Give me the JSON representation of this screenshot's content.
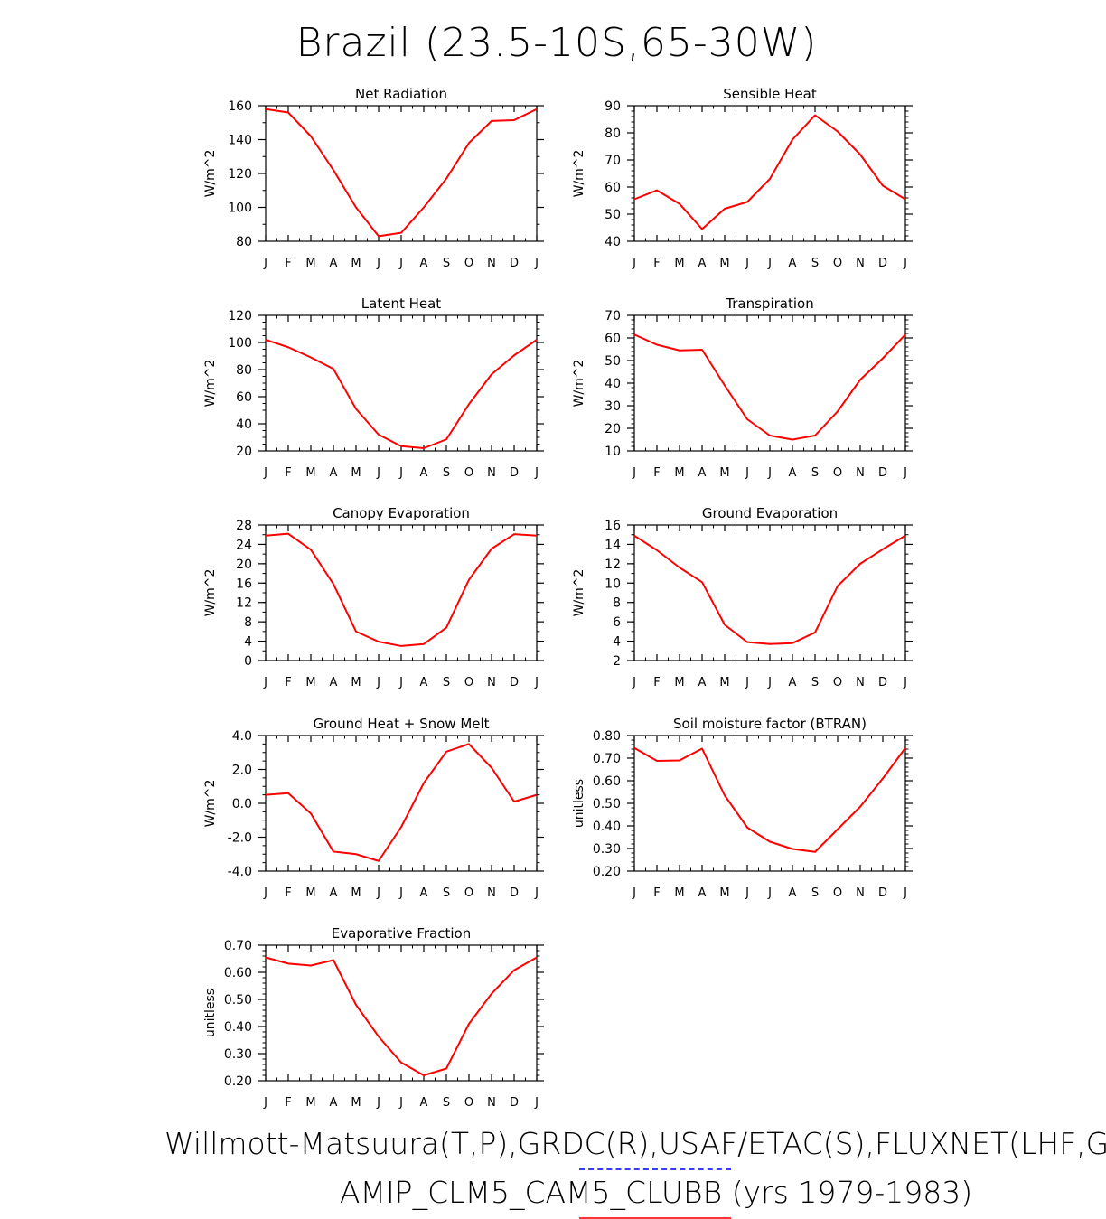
{
  "figure": {
    "title": "Brazil (23.5-10S,65-30W)",
    "footer_line1": "Willmott-Matsuura(T,P),GRDC(R),USAF/ETAC(S),FLUXNET(LHF,GP",
    "footer_line2": "AMIP_CLM5_CAM5_CLUBB (yrs 1979-1983)",
    "line_color": "#ff0000",
    "footer_underline_colors": [
      "#3b3bff",
      "#ff3333"
    ]
  },
  "chart_data": [
    {
      "type": "line",
      "title": "Net Radiation",
      "ylabel": "W/m^2",
      "x": [
        "J",
        "F",
        "M",
        "A",
        "M",
        "J",
        "J",
        "A",
        "S",
        "O",
        "N",
        "D",
        "J"
      ],
      "ylim": [
        80,
        160
      ],
      "yticks": [
        80,
        100,
        120,
        140,
        160
      ],
      "ytick_labels": [
        "80",
        "100",
        "120",
        "140",
        "160"
      ],
      "minor_step": 10,
      "values": [
        158,
        156,
        142,
        122,
        100,
        83,
        85,
        100,
        117,
        138,
        151,
        151.5,
        158
      ]
    },
    {
      "type": "line",
      "title": "Sensible Heat",
      "ylabel": "W/m^2",
      "x": [
        "J",
        "F",
        "M",
        "A",
        "M",
        "J",
        "J",
        "A",
        "S",
        "O",
        "N",
        "D",
        "J"
      ],
      "ylim": [
        40,
        90
      ],
      "yticks": [
        40,
        50,
        60,
        70,
        80,
        90
      ],
      "ytick_labels": [
        "40",
        "50",
        "60",
        "70",
        "80",
        "90"
      ],
      "minor_step": 2,
      "values": [
        55.5,
        58.8,
        53.8,
        44.5,
        52,
        54.5,
        63,
        77.5,
        86.5,
        80.5,
        72,
        60.5,
        55.5
      ]
    },
    {
      "type": "line",
      "title": "Latent Heat",
      "ylabel": "W/m^2",
      "x": [
        "J",
        "F",
        "M",
        "A",
        "M",
        "J",
        "J",
        "A",
        "S",
        "O",
        "N",
        "D",
        "J"
      ],
      "ylim": [
        20,
        120
      ],
      "yticks": [
        20,
        40,
        60,
        80,
        100,
        120
      ],
      "ytick_labels": [
        "20",
        "40",
        "60",
        "80",
        "100",
        "120"
      ],
      "minor_step": 5,
      "values": [
        102,
        96.5,
        89,
        80.5,
        51,
        32,
        23.5,
        22,
        28.5,
        54.5,
        76.5,
        90.5,
        102
      ]
    },
    {
      "type": "line",
      "title": "Transpiration",
      "ylabel": "W/m^2",
      "x": [
        "J",
        "F",
        "M",
        "A",
        "M",
        "J",
        "J",
        "A",
        "S",
        "O",
        "N",
        "D",
        "J"
      ],
      "ylim": [
        10,
        70
      ],
      "yticks": [
        10,
        20,
        30,
        40,
        50,
        60,
        70
      ],
      "ytick_labels": [
        "10",
        "20",
        "30",
        "40",
        "50",
        "60",
        "70"
      ],
      "minor_step": 2,
      "values": [
        61.5,
        57,
        54.5,
        54.8,
        39,
        24,
        16.8,
        15,
        16.8,
        27.5,
        41.5,
        51,
        61.5
      ]
    },
    {
      "type": "line",
      "title": "Canopy Evaporation",
      "ylabel": "W/m^2",
      "x": [
        "J",
        "F",
        "M",
        "A",
        "M",
        "J",
        "J",
        "A",
        "S",
        "O",
        "N",
        "D",
        "J"
      ],
      "ylim": [
        0,
        28
      ],
      "yticks": [
        0,
        4,
        8,
        12,
        16,
        20,
        24,
        28
      ],
      "ytick_labels": [
        "0",
        "4",
        "8",
        "12",
        "16",
        "20",
        "24",
        "28"
      ],
      "minor_step": 2,
      "values": [
        25.8,
        26.2,
        22.9,
        15.8,
        6,
        3.9,
        3,
        3.4,
        6.8,
        16.7,
        23.1,
        26.1,
        25.8
      ]
    },
    {
      "type": "line",
      "title": "Ground Evaporation",
      "ylabel": "W/m^2",
      "x": [
        "J",
        "F",
        "M",
        "A",
        "M",
        "J",
        "J",
        "A",
        "S",
        "O",
        "N",
        "D",
        "J"
      ],
      "ylim": [
        2,
        16
      ],
      "yticks": [
        2,
        4,
        6,
        8,
        10,
        12,
        14,
        16
      ],
      "ytick_labels": [
        "2",
        "4",
        "6",
        "8",
        "10",
        "12",
        "14",
        "16"
      ],
      "minor_step": 1,
      "values": [
        14.9,
        13.4,
        11.6,
        10.1,
        5.7,
        3.9,
        3.7,
        3.8,
        4.9,
        9.7,
        12,
        13.5,
        14.9
      ]
    },
    {
      "type": "line",
      "title": "Ground Heat + Snow Melt",
      "ylabel": "W/m^2",
      "x": [
        "J",
        "F",
        "M",
        "A",
        "M",
        "J",
        "J",
        "A",
        "S",
        "O",
        "N",
        "D",
        "J"
      ],
      "ylim": [
        -4,
        4
      ],
      "yticks": [
        -4,
        -2,
        0,
        2,
        4
      ],
      "ytick_labels": [
        "-4.0",
        "-2.0",
        "0.0",
        "2.0",
        "4.0"
      ],
      "minor_step": 0.5,
      "values": [
        0.5,
        0.6,
        -0.6,
        -2.85,
        -3,
        -3.4,
        -1.4,
        1.2,
        3.05,
        3.5,
        2.1,
        0.1,
        0.5
      ]
    },
    {
      "type": "line",
      "title": "Soil moisture factor (BTRAN)",
      "ylabel": "unitless",
      "x": [
        "J",
        "F",
        "M",
        "A",
        "M",
        "J",
        "J",
        "A",
        "S",
        "O",
        "N",
        "D",
        "J"
      ],
      "ylim": [
        0.2,
        0.8
      ],
      "yticks": [
        0.2,
        0.3,
        0.4,
        0.5,
        0.6,
        0.7,
        0.8
      ],
      "ytick_labels": [
        "0.20",
        "0.30",
        "0.40",
        "0.50",
        "0.60",
        "0.70",
        "0.80"
      ],
      "minor_step": 0.02,
      "values": [
        0.745,
        0.688,
        0.69,
        0.742,
        0.535,
        0.393,
        0.33,
        0.298,
        0.285,
        0.385,
        0.485,
        0.61,
        0.745
      ]
    },
    {
      "type": "line",
      "title": "Evaporative Fraction",
      "ylabel": "unitless",
      "x": [
        "J",
        "F",
        "M",
        "A",
        "M",
        "J",
        "J",
        "A",
        "S",
        "O",
        "N",
        "D",
        "J"
      ],
      "ylim": [
        0.2,
        0.7
      ],
      "yticks": [
        0.2,
        0.3,
        0.4,
        0.5,
        0.6,
        0.7
      ],
      "ytick_labels": [
        "0.20",
        "0.30",
        "0.40",
        "0.50",
        "0.60",
        "0.70"
      ],
      "minor_step": 0.02,
      "values": [
        0.655,
        0.632,
        0.625,
        0.645,
        0.48,
        0.363,
        0.267,
        0.22,
        0.245,
        0.41,
        0.521,
        0.608,
        0.655
      ]
    }
  ]
}
